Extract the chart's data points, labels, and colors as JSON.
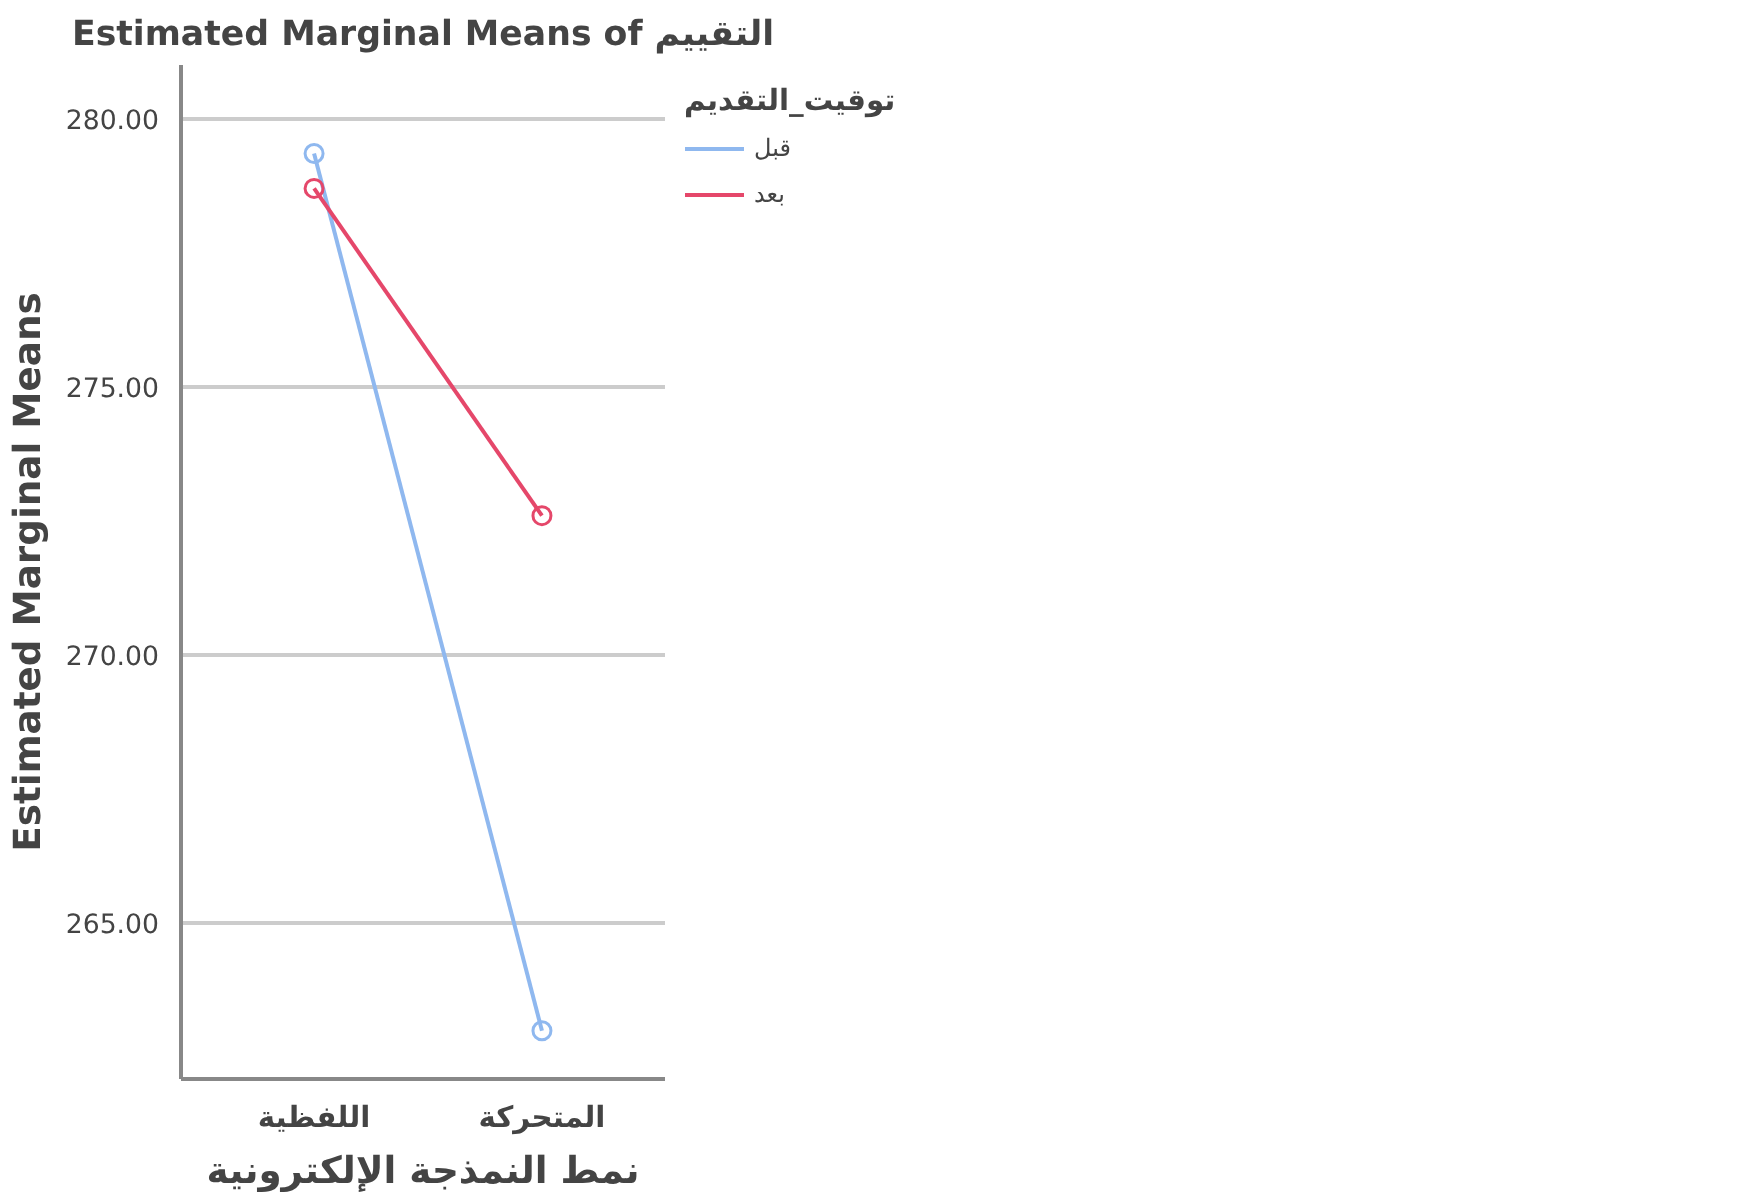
{
  "chart_data": {
    "type": "line",
    "title": "Estimated Marginal Means of التقييم",
    "xlabel": "نمط النمذجة الإلكترونية",
    "ylabel": "Estimated Marginal Means",
    "legend_title": "توقيت_التقديم",
    "categories": [
      "اللفظية",
      "المتحركة"
    ],
    "series": [
      {
        "name": "قبل",
        "color": "#8fb8ef",
        "values": [
          279.35,
          263.0
        ]
      },
      {
        "name": "بعد",
        "color": "#e5476a",
        "values": [
          278.7,
          272.6
        ]
      }
    ],
    "ylim": [
      262.1,
      281.0
    ],
    "yticks": [
      {
        "value": 265,
        "label": "265.00"
      },
      {
        "value": 270,
        "label": "270.00"
      },
      {
        "value": 275,
        "label": "275.00"
      },
      {
        "value": 280,
        "label": "280.00"
      }
    ],
    "grid": "y",
    "legend": "top right",
    "marker": "circle",
    "line_style": "solid"
  }
}
